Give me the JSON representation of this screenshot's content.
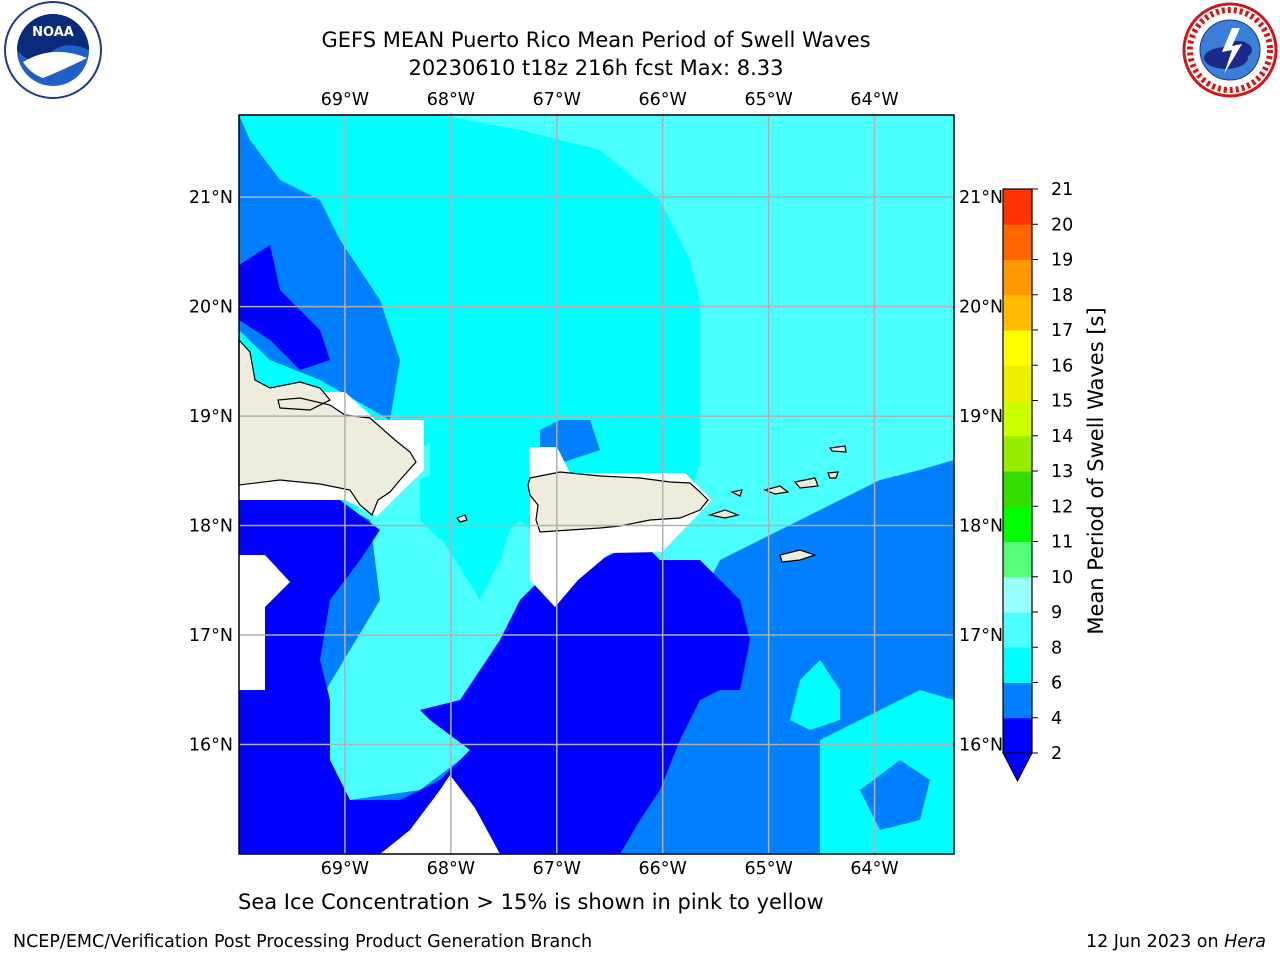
{
  "header": {
    "title_line1": "GEFS MEAN Puerto Rico Mean Period of Swell Waves",
    "title_line2": "20230610 t18z 216h fcst   Max: 8.33"
  },
  "logos": {
    "left": "noaa-logo",
    "right": "nws-logo"
  },
  "map": {
    "lon_labels": [
      "69°W",
      "68°W",
      "67°W",
      "66°W",
      "65°W",
      "64°W"
    ],
    "lat_labels": [
      "21°N",
      "20°N",
      "19°N",
      "18°N",
      "17°N",
      "16°N"
    ],
    "lon_range": [
      -70.0,
      -63.25
    ],
    "lat_range": [
      15.0,
      21.75
    ],
    "colors": {
      "land": "#eeecdc",
      "grid": "#b0b0b0"
    }
  },
  "colorbar": {
    "label": "Mean Period of Swell Waves [s]",
    "ticks": [
      "2",
      "4",
      "6",
      "8",
      "9",
      "10",
      "11",
      "12",
      "13",
      "14",
      "15",
      "16",
      "17",
      "18",
      "19",
      "20",
      "21"
    ],
    "colors": [
      "#0000ff",
      "#007fff",
      "#00ffff",
      "#4cffff",
      "#99ffff",
      "#55ff77",
      "#00ff00",
      "#33dd00",
      "#99ee00",
      "#ccff00",
      "#eeee00",
      "#ffff00",
      "#ffbb00",
      "#ff9900",
      "#ff6600",
      "#ff3300",
      "#ff0000"
    ],
    "extend": "min"
  },
  "note": "Sea Ice Concentration > 15% is shown in pink to yellow",
  "footer": {
    "left": "NCEP/EMC/Verification Post Processing Product Generation Branch",
    "right_date": "12 Jun 2023 on ",
    "right_host": "Hera"
  }
}
